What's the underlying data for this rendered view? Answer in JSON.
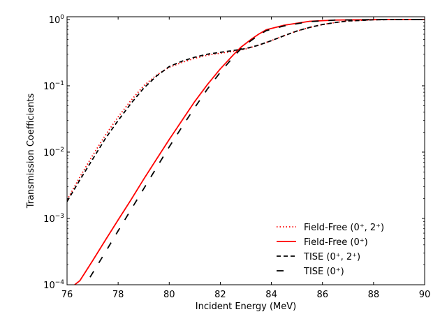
{
  "chart_data": {
    "type": "line",
    "title": "",
    "xlabel": "Incident Energy (MeV)",
    "ylabel": "Transmission Coefficients",
    "xlim": [
      76,
      90
    ],
    "ylim": [
      0.0001,
      1.1
    ],
    "yscale": "log",
    "grid": false,
    "legend_position": "lower-right",
    "x_ticks": [
      76,
      78,
      80,
      82,
      84,
      86,
      88,
      90
    ],
    "x_tick_labels": [
      "76",
      "78",
      "80",
      "82",
      "84",
      "86",
      "88",
      "90"
    ],
    "y_ticks": [
      0.0001,
      0.001,
      0.01,
      0.1,
      1
    ],
    "y_tick_labels": [
      {
        "base": "10",
        "exp": "−4"
      },
      {
        "base": "10",
        "exp": "−3"
      },
      {
        "base": "10",
        "exp": "−2"
      },
      {
        "base": "10",
        "exp": "−1"
      },
      {
        "base": "10",
        "exp": "0"
      }
    ],
    "series": [
      {
        "name": "Field-Free (0⁺, 2⁺)",
        "color": "#ff0000",
        "style": "dotted",
        "x": [
          76,
          76.5,
          77,
          77.5,
          78,
          78.5,
          79,
          79.5,
          80,
          80.5,
          81,
          81.5,
          82,
          82.5,
          83,
          83.5,
          84,
          84.5,
          85,
          85.5,
          86,
          86.5,
          87,
          88,
          89,
          90
        ],
        "y": [
          0.0019,
          0.0042,
          0.0089,
          0.018,
          0.034,
          0.06,
          0.1,
          0.145,
          0.19,
          0.225,
          0.26,
          0.29,
          0.31,
          0.33,
          0.36,
          0.41,
          0.48,
          0.57,
          0.67,
          0.76,
          0.84,
          0.9,
          0.95,
          0.99,
          1.0,
          1.0
        ]
      },
      {
        "name": "Field-Free (0⁺)",
        "color": "#ff0000",
        "style": "solid",
        "x": [
          76.3,
          76.5,
          77,
          77.5,
          78,
          78.5,
          79,
          79.5,
          80,
          80.5,
          81,
          81.5,
          82,
          82.5,
          82.8,
          83.2,
          83.5,
          83.8,
          84.5,
          85.5,
          86.5,
          87.5,
          88.5,
          90
        ],
        "y": [
          0.0001,
          0.000115,
          0.00023,
          0.00047,
          0.00095,
          0.0019,
          0.0039,
          0.0078,
          0.0155,
          0.03,
          0.058,
          0.105,
          0.18,
          0.29,
          0.38,
          0.5,
          0.6,
          0.7,
          0.82,
          0.94,
          0.98,
          0.99,
          1.0,
          1.0
        ]
      },
      {
        "name": "TISE (0⁺, 2⁺)",
        "color": "#000000",
        "style": "dashed",
        "x": [
          76,
          76.5,
          77,
          77.5,
          78,
          78.5,
          79,
          79.5,
          80,
          80.5,
          81,
          81.5,
          82,
          82.5,
          83,
          83.5,
          84,
          84.5,
          85,
          85.5,
          86,
          86.5,
          87,
          88,
          89,
          90
        ],
        "y": [
          0.0018,
          0.0038,
          0.0078,
          0.016,
          0.03,
          0.054,
          0.092,
          0.14,
          0.195,
          0.235,
          0.27,
          0.3,
          0.32,
          0.34,
          0.365,
          0.41,
          0.48,
          0.57,
          0.67,
          0.76,
          0.84,
          0.9,
          0.95,
          0.99,
          1.0,
          1.0
        ]
      },
      {
        "name": "TISE (0⁺)",
        "color": "#000000",
        "style": "longdash",
        "x": [
          76.9,
          77,
          77.5,
          78,
          78.5,
          79,
          79.5,
          80,
          80.5,
          81,
          81.5,
          82,
          82.5,
          82.8,
          83.2,
          83.5,
          83.8,
          84.5,
          85.5,
          86.5,
          87.5,
          88.5,
          90
        ],
        "y": [
          0.00013,
          0.00015,
          0.00031,
          0.00065,
          0.00135,
          0.0028,
          0.0058,
          0.012,
          0.024,
          0.047,
          0.09,
          0.16,
          0.27,
          0.36,
          0.48,
          0.58,
          0.68,
          0.8,
          0.93,
          0.98,
          0.99,
          1.0,
          1.0
        ]
      }
    ]
  }
}
